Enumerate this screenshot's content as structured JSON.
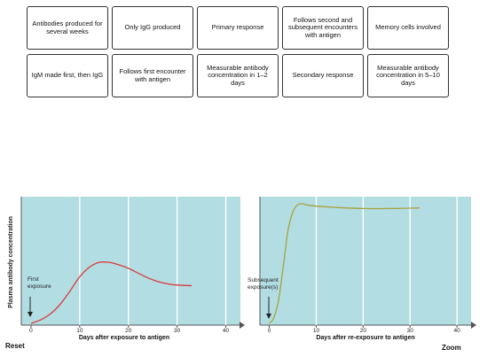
{
  "cards": [
    "Antibodies produced for several weeks",
    "Only IgG produced",
    "Primary response",
    "Follows second and subsequent encounters with antigen",
    "Memory cells involved",
    "IgM made first, then IgG",
    "Follows first encounter with antigen",
    "Measurable antibody concentration in 1–2 days",
    "Secondary response",
    "Measurable antibody concentration in 5–10 days"
  ],
  "colors": {
    "plot_bg": "#b2dde3",
    "curve": "#d93a3a",
    "curve2": "#a8a23c",
    "axis": "#555555"
  },
  "chart_data": [
    {
      "type": "line",
      "title": "",
      "xlabel": "Days after exposure to antigen",
      "ylabel": "Plasma antibody concentration",
      "xticks": [
        0,
        10,
        20,
        30,
        40
      ],
      "xlim": [
        -2,
        43
      ],
      "ylim": [
        0,
        1
      ],
      "annotation": "First exposure",
      "series": [
        {
          "x": [
            0,
            2,
            4,
            6,
            8,
            10,
            12,
            14,
            16,
            18,
            20,
            22,
            24,
            26,
            28,
            30,
            33
          ],
          "y": [
            0,
            0.03,
            0.08,
            0.16,
            0.27,
            0.39,
            0.47,
            0.51,
            0.51,
            0.49,
            0.46,
            0.42,
            0.38,
            0.35,
            0.33,
            0.32,
            0.315
          ]
        }
      ]
    },
    {
      "type": "line",
      "title": "",
      "xlabel": "Days after re-exposure to antigen",
      "ylabel": "",
      "xticks": [
        0,
        10,
        20,
        30,
        40
      ],
      "xlim": [
        -2,
        43
      ],
      "ylim": [
        0,
        1
      ],
      "annotation": "Subsequent exposure(s)",
      "series": [
        {
          "x": [
            0,
            1,
            2,
            3,
            4,
            5,
            6,
            7,
            8,
            10,
            14,
            20,
            26,
            32
          ],
          "y": [
            0,
            0.05,
            0.2,
            0.48,
            0.78,
            0.93,
            0.99,
            1.0,
            0.99,
            0.98,
            0.97,
            0.96,
            0.96,
            0.965
          ]
        }
      ]
    }
  ],
  "buttons": {
    "reset": "Reset",
    "zoom": "Zoom"
  }
}
